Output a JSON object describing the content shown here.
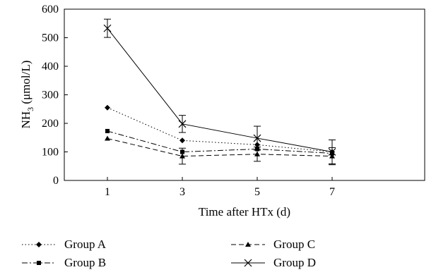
{
  "chart_data": {
    "type": "line",
    "xlabel": "Time after HTx (d)",
    "ylabel_main": "NH",
    "ylabel_sub": "3",
    "ylabel_rest": " (μmol/L)",
    "x": [
      1,
      3,
      5,
      7
    ],
    "x_ticks": [
      "1",
      "3",
      "5",
      "7"
    ],
    "ylim": [
      0,
      600
    ],
    "y_ticks": [
      "0",
      "100",
      "200",
      "300",
      "400",
      "500",
      "600"
    ],
    "grid": false,
    "legend_position": "bottom",
    "series": [
      {
        "name": "Group A",
        "values": [
          255,
          140,
          125,
          100
        ],
        "marker": "diamond",
        "dash": "dotted",
        "errors": [
          null,
          null,
          null,
          null
        ]
      },
      {
        "name": "Group B",
        "values": [
          173,
          100,
          110,
          95
        ],
        "marker": "square",
        "dash": "dash-dot",
        "errors": [
          null,
          null,
          null,
          null
        ]
      },
      {
        "name": "Group C",
        "values": [
          147,
          85,
          92,
          85
        ],
        "marker": "triangle",
        "dash": "dashed",
        "errors": [
          null,
          28,
          25,
          30
        ]
      },
      {
        "name": "Group D",
        "values": [
          533,
          198,
          148,
          100
        ],
        "marker": "x",
        "dash": "solid",
        "errors": [
          32,
          30,
          42,
          42
        ]
      }
    ]
  }
}
